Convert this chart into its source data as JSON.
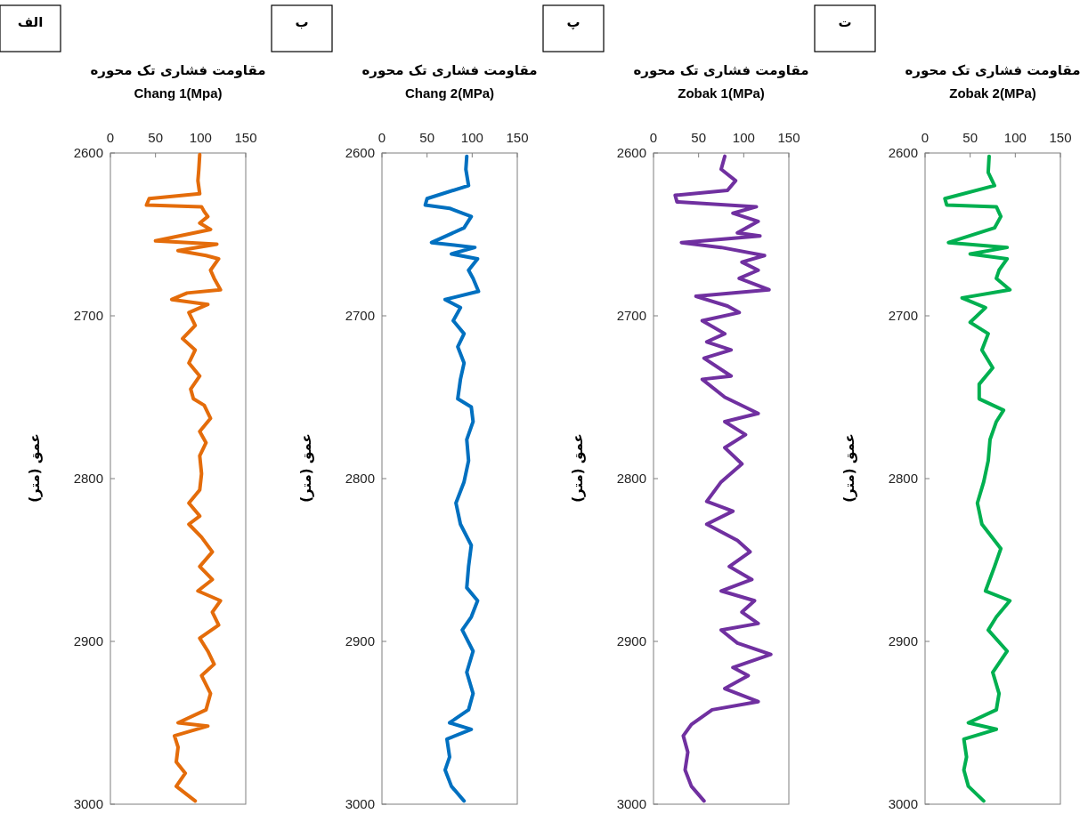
{
  "chart_data": [
    {
      "type": "line",
      "title": "مقاومت فشاری تک محوره",
      "xlabel": "Chang 1(Mpa)",
      "ylabel": "عمق (متر)",
      "annotations": [
        "الف"
      ],
      "xlim": [
        0,
        150
      ],
      "xticks": [
        0,
        50,
        100,
        150
      ],
      "ylim": [
        3000,
        2600
      ],
      "yticks": [
        2600,
        2700,
        2800,
        2900,
        3000
      ],
      "series": [
        {
          "color": "#e46c0a",
          "x": [
            99,
            98,
            97,
            99,
            43,
            40,
            101,
            104,
            108,
            99,
            111,
            50,
            118,
            75,
            106,
            120,
            111,
            115,
            122,
            85,
            68,
            108,
            87,
            94,
            80,
            94,
            87,
            99,
            89,
            92,
            104,
            111,
            99,
            106,
            99,
            101,
            99,
            87,
            99,
            87,
            101,
            113,
            99,
            113,
            97,
            122,
            113,
            120,
            99,
            108,
            115,
            101,
            111,
            106,
            75,
            108,
            71,
            75,
            73,
            83,
            73,
            94
          ],
          "values": [
            2601,
            2610,
            2617,
            2625,
            2628,
            2632,
            2633,
            2636,
            2639,
            2643,
            2647,
            2654,
            2656,
            2660,
            2663,
            2665,
            2672,
            2677,
            2684,
            2686,
            2690,
            2693,
            2698,
            2706,
            2714,
            2721,
            2729,
            2737,
            2745,
            2751,
            2755,
            2763,
            2771,
            2778,
            2786,
            2797,
            2807,
            2815,
            2823,
            2828,
            2836,
            2845,
            2854,
            2862,
            2869,
            2875,
            2882,
            2890,
            2898,
            2906,
            2914,
            2921,
            2932,
            2942,
            2950,
            2952,
            2958,
            2965,
            2974,
            2981,
            2989,
            2998
          ]
        }
      ]
    },
    {
      "type": "line",
      "title": "مقاومت فشاری تک محوره",
      "xlabel": "Chang 2(MPa)",
      "ylabel": "عمق (متر)",
      "annotations": [
        "ب"
      ],
      "xlim": [
        0,
        150
      ],
      "xticks": [
        0,
        50,
        100,
        150
      ],
      "ylim": [
        3000,
        2600
      ],
      "yticks": [
        2600,
        2700,
        2800,
        2900,
        3000
      ],
      "series": [
        {
          "color": "#0070c0",
          "x": [
            94,
            93,
            96,
            50,
            48,
            75,
            99,
            91,
            55,
            103,
            77,
            106,
            96,
            101,
            107,
            70,
            87,
            79,
            91,
            84,
            91,
            87,
            84,
            99,
            101,
            94,
            96,
            91,
            82,
            87,
            99,
            96,
            94,
            106,
            99,
            89,
            101,
            94,
            101,
            96,
            75,
            99,
            72,
            75,
            70,
            77,
            91
          ],
          "values": [
            2602,
            2610,
            2620,
            2628,
            2632,
            2634,
            2639,
            2646,
            2655,
            2658,
            2662,
            2665,
            2672,
            2677,
            2685,
            2690,
            2695,
            2703,
            2711,
            2719,
            2729,
            2739,
            2751,
            2756,
            2765,
            2776,
            2789,
            2802,
            2815,
            2828,
            2841,
            2854,
            2867,
            2875,
            2885,
            2893,
            2906,
            2919,
            2932,
            2942,
            2950,
            2954,
            2960,
            2971,
            2979,
            2989,
            2998
          ]
        }
      ]
    },
    {
      "type": "line",
      "title": "مقاومت فشاری تک محوره",
      "xlabel": "Zobak 1(MPa)",
      "ylabel": "عمق (متر)",
      "annotations": [
        "پ"
      ],
      "xlim": [
        0,
        150
      ],
      "xticks": [
        0,
        50,
        100,
        150
      ],
      "ylim": [
        3000,
        2600
      ],
      "yticks": [
        2600,
        2700,
        2800,
        2900,
        3000
      ],
      "series": [
        {
          "color": "#7030a0",
          "x": [
            79,
            75,
            91,
            82,
            24,
            26,
            114,
            88,
            116,
            93,
            118,
            31,
            75,
            123,
            98,
            116,
            95,
            128,
            47,
            82,
            95,
            54,
            79,
            59,
            86,
            56,
            86,
            54,
            79,
            116,
            79,
            102,
            79,
            98,
            75,
            59,
            88,
            59,
            93,
            107,
            84,
            109,
            75,
            112,
            98,
            116,
            75,
            93,
            130,
            88,
            105,
            79,
            116,
            65,
            42,
            33,
            38,
            35,
            42,
            56
          ],
          "values": [
            2602,
            2610,
            2617,
            2623,
            2626,
            2630,
            2633,
            2637,
            2642,
            2649,
            2651,
            2655,
            2658,
            2663,
            2667,
            2672,
            2677,
            2684,
            2688,
            2694,
            2698,
            2703,
            2711,
            2716,
            2721,
            2726,
            2737,
            2739,
            2750,
            2760,
            2765,
            2773,
            2781,
            2791,
            2802,
            2814,
            2820,
            2828,
            2838,
            2845,
            2854,
            2862,
            2869,
            2875,
            2882,
            2889,
            2893,
            2901,
            2908,
            2916,
            2921,
            2929,
            2937,
            2942,
            2951,
            2958,
            2968,
            2979,
            2989,
            2998
          ]
        }
      ]
    },
    {
      "type": "line",
      "title": "مقاومت فشاری تک محوره",
      "xlabel": "Zobak 2(MPa)",
      "ylabel": "عمق (متر)",
      "annotations": [
        "ت"
      ],
      "xlim": [
        0,
        150
      ],
      "xticks": [
        0,
        50,
        100,
        150
      ],
      "ylim": [
        3000,
        2600
      ],
      "yticks": [
        2600,
        2700,
        2800,
        2900,
        3000
      ],
      "series": [
        {
          "color": "#00b050",
          "x": [
            71,
            70,
            77,
            22,
            24,
            79,
            84,
            77,
            26,
            91,
            50,
            91,
            82,
            79,
            94,
            41,
            67,
            50,
            70,
            63,
            75,
            60,
            60,
            87,
            79,
            72,
            70,
            65,
            58,
            63,
            84,
            77,
            67,
            94,
            79,
            70,
            91,
            75,
            82,
            79,
            48,
            79,
            43,
            46,
            43,
            48,
            65
          ],
          "values": [
            2602,
            2612,
            2620,
            2628,
            2632,
            2633,
            2639,
            2646,
            2655,
            2658,
            2662,
            2665,
            2672,
            2677,
            2684,
            2689,
            2695,
            2704,
            2711,
            2721,
            2732,
            2742,
            2751,
            2758,
            2765,
            2776,
            2789,
            2802,
            2815,
            2828,
            2843,
            2854,
            2869,
            2875,
            2885,
            2893,
            2906,
            2919,
            2932,
            2942,
            2950,
            2954,
            2960,
            2971,
            2979,
            2989,
            2998
          ]
        }
      ]
    }
  ]
}
